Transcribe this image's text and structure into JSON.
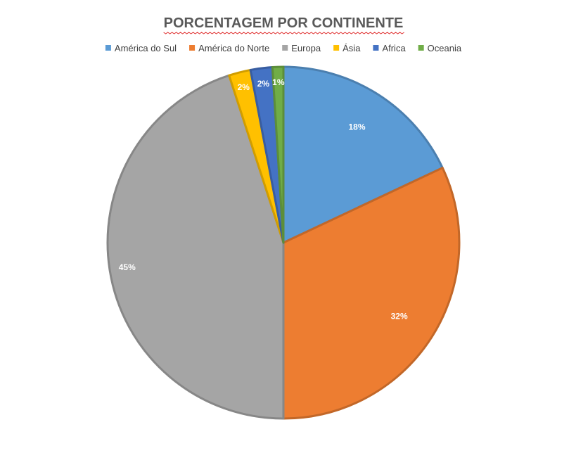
{
  "chart_data": {
    "type": "pie",
    "title": "PORCENTAGEM POR CONTINENTE",
    "legend_position": "top",
    "categories": [
      "América do Sul",
      "América do Norte",
      "Europa",
      "Ásia",
      "Africa",
      "Oceania"
    ],
    "values": [
      18,
      32,
      45,
      2,
      2,
      1
    ],
    "data_labels": [
      "18%",
      "32%",
      "45%",
      "2%",
      "2%",
      "1%"
    ],
    "colors": [
      "#5B9BD5",
      "#ED7D31",
      "#A5A5A5",
      "#FFC000",
      "#4472C4",
      "#70AD47"
    ],
    "start_angle_deg": 0,
    "direction": "clockwise"
  }
}
